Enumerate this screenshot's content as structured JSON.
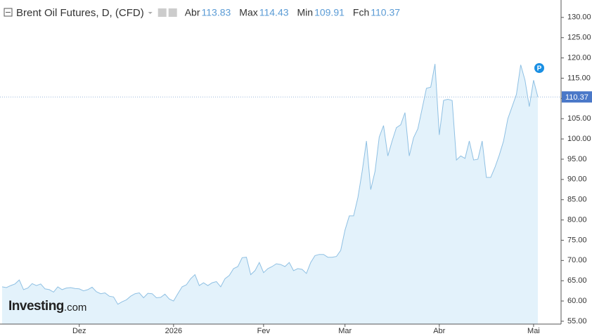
{
  "chart_data": {
    "type": "area",
    "title": "Brent Oil Futures, D, (CFD)",
    "stats": [
      {
        "label": "Abr",
        "value": 113.83
      },
      {
        "label": "Max",
        "value": 114.43
      },
      {
        "label": "Min",
        "value": 109.91
      },
      {
        "label": "Fch",
        "value": 110.37
      }
    ],
    "marker": "P",
    "logo": {
      "brand": "Investing",
      "suffix": ".com"
    },
    "categories": [
      null,
      null,
      null,
      null,
      null,
      null,
      null,
      null,
      null,
      null,
      null,
      null,
      null,
      null,
      null,
      null,
      null,
      null,
      "Dez",
      null,
      null,
      null,
      null,
      null,
      null,
      null,
      null,
      null,
      null,
      null,
      null,
      null,
      null,
      null,
      null,
      null,
      null,
      null,
      null,
      null,
      "2026",
      null,
      null,
      null,
      null,
      null,
      null,
      null,
      null,
      null,
      null,
      null,
      null,
      null,
      null,
      null,
      null,
      null,
      null,
      null,
      null,
      "Fev",
      null,
      null,
      null,
      null,
      null,
      null,
      null,
      null,
      null,
      null,
      null,
      null,
      null,
      null,
      null,
      null,
      null,
      null,
      "Mar",
      null,
      null,
      null,
      null,
      null,
      null,
      null,
      null,
      null,
      null,
      null,
      null,
      null,
      null,
      null,
      null,
      null,
      null,
      null,
      null,
      null,
      "Abr",
      null,
      null,
      null,
      null,
      null,
      null,
      null,
      null,
      null,
      null,
      null,
      null,
      null,
      null,
      null,
      null,
      null,
      null,
      null,
      null,
      null,
      "Mai",
      null
    ],
    "series": [
      {
        "name": "Brent Oil Futures",
        "color": "#8fc0e3",
        "fill": "#e3f2fb",
        "values": [
          63.5,
          63.3,
          63.8,
          64.2,
          65.2,
          62.8,
          63.2,
          64.3,
          63.8,
          64.2,
          63.0,
          62.8,
          62.2,
          63.5,
          62.8,
          63.2,
          63.3,
          63.1,
          63.0,
          62.5,
          62.8,
          63.4,
          62.3,
          61.8,
          62.0,
          61.2,
          61.0,
          59.2,
          59.8,
          60.3,
          61.2,
          61.8,
          62.0,
          60.8,
          61.9,
          61.8,
          60.8,
          60.9,
          61.7,
          60.5,
          60.0,
          61.8,
          63.5,
          64.0,
          65.5,
          66.5,
          63.8,
          64.5,
          63.8,
          64.5,
          64.8,
          63.5,
          65.5,
          66.3,
          68.0,
          68.5,
          70.7,
          70.8,
          66.5,
          67.5,
          69.5,
          67.0,
          68.0,
          68.5,
          69.2,
          69.0,
          68.5,
          69.5,
          67.5,
          68.0,
          67.8,
          66.8,
          69.5,
          71.2,
          71.5,
          71.5,
          70.8,
          70.8,
          71.0,
          72.5,
          77.5,
          81.0,
          81.0,
          85.5,
          92.0,
          99.5,
          87.5,
          92.0,
          100.5,
          103.3,
          95.8,
          99.5,
          102.8,
          103.5,
          106.5,
          95.8,
          100.3,
          102.5,
          107.5,
          112.5,
          112.8,
          118.5,
          101.0,
          109.5,
          109.8,
          109.5,
          94.8,
          95.8,
          95.2,
          99.5,
          94.8,
          95.0,
          99.5,
          90.5,
          90.5,
          93.0,
          96.0,
          99.5,
          105.0,
          108.0,
          111.0,
          118.3,
          114.5,
          108.0,
          114.5,
          110.37
        ]
      }
    ],
    "ylim": [
      54.3,
      134.3
    ],
    "yticks": [
      {
        "value": 55,
        "label": "55.00"
      },
      {
        "value": 60,
        "label": "60.00"
      },
      {
        "value": 65,
        "label": "65.00"
      },
      {
        "value": 70,
        "label": "70.00"
      },
      {
        "value": 75,
        "label": "75.00"
      },
      {
        "value": 80,
        "label": "80.00"
      },
      {
        "value": 85,
        "label": "85.00"
      },
      {
        "value": 90,
        "label": "90.00"
      },
      {
        "value": 95,
        "label": "95.00"
      },
      {
        "value": 100,
        "label": "100.00"
      },
      {
        "value": 105,
        "label": "105.00"
      },
      {
        "value": 110,
        "label": "110.00"
      },
      {
        "value": 115,
        "label": "115.00"
      },
      {
        "value": 120,
        "label": "120.00"
      },
      {
        "value": 125,
        "label": "125.00"
      },
      {
        "value": 130,
        "label": "130.00"
      }
    ],
    "axis_side": "right",
    "grid": false
  }
}
